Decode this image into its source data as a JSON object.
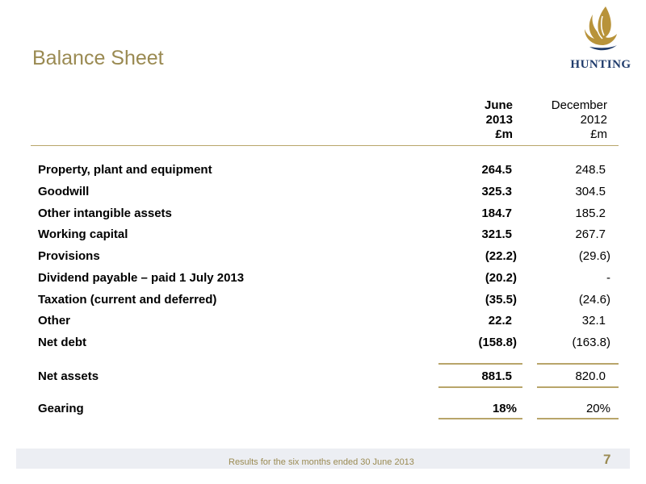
{
  "title": "Balance Sheet",
  "logo": {
    "text": "HUNTING"
  },
  "columns": {
    "current": {
      "line1": "June",
      "line2": "2013",
      "line3": "£m"
    },
    "prior": {
      "line1": "December",
      "line2": "2012",
      "line3": "£m"
    }
  },
  "rows": [
    {
      "label": "Property, plant and equipment",
      "current": "264.5",
      "prior": "248.5"
    },
    {
      "label": "Goodwill",
      "current": "325.3",
      "prior": "304.5"
    },
    {
      "label": "Other intangible assets",
      "current": "184.7",
      "prior": "185.2"
    },
    {
      "label": "Working capital",
      "current": "321.5",
      "prior": "267.7"
    },
    {
      "label": "Provisions",
      "current": "(22.2)",
      "prior": "(29.6)"
    },
    {
      "label": "Dividend payable – paid 1 July 2013",
      "current": "(20.2)",
      "prior": "-"
    },
    {
      "label": "Taxation (current and deferred)",
      "current": "(35.5)",
      "prior": "(24.6)"
    },
    {
      "label": "Other",
      "current": "22.2",
      "prior": "32.1"
    },
    {
      "label": "Net debt",
      "current": "(158.8)",
      "prior": "(163.8)"
    }
  ],
  "net_assets": {
    "label": "Net assets",
    "current": "881.5",
    "prior": "820.0"
  },
  "gearing": {
    "label": "Gearing",
    "current": "18%",
    "prior": "20%"
  },
  "footer": {
    "text": "Results for the six months ended 30 June 2013",
    "page": "7"
  },
  "colors": {
    "accent": "#9a8a52",
    "rule": "#b8a56a",
    "logo_blue": "#1f3b6b",
    "logo_gold": "#b8933a"
  }
}
